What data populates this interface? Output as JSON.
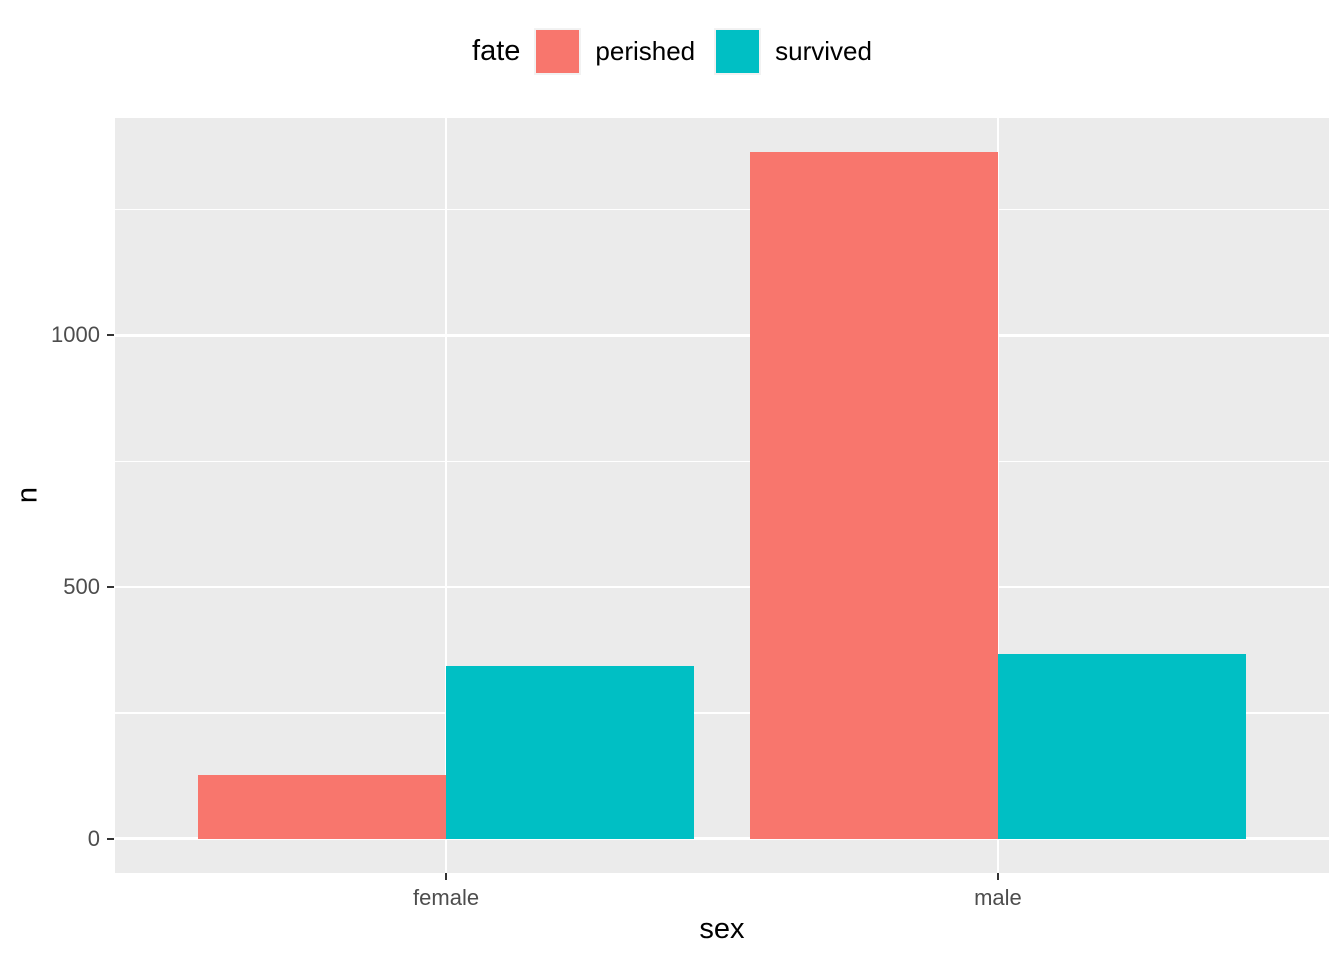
{
  "figure": {
    "legend": {
      "title": "fate",
      "items": [
        {
          "label": "perished",
          "color": "#F8766D"
        },
        {
          "label": "survived",
          "color": "#00BFC4"
        }
      ],
      "key_background": "#F2F2F2"
    },
    "x_axis": {
      "title": "sex",
      "tick_labels": [
        "female",
        "male"
      ]
    },
    "y_axis": {
      "title": "n",
      "tick_labels": [
        "0",
        "500",
        "1000"
      ]
    }
  },
  "chart_data": {
    "type": "bar",
    "mode": "dodged",
    "title": "",
    "xlabel": "sex",
    "ylabel": "n",
    "categories": [
      "female",
      "male"
    ],
    "series": [
      {
        "name": "perished",
        "color": "#F8766D",
        "values": [
          126,
          1364
        ]
      },
      {
        "name": "survived",
        "color": "#00BFC4",
        "values": [
          344,
          367
        ]
      }
    ],
    "y_breaks": [
      0,
      500,
      1000
    ],
    "y_minor_breaks": [
      250,
      750,
      1250
    ],
    "y_domain": [
      -68.2,
      1432.2
    ],
    "ylim": [
      0,
      1364
    ],
    "bar_relative_width": 0.9,
    "legend_position": "top",
    "grid": true,
    "panel_background": "#EBEBEB",
    "grid_color": "#FFFFFF",
    "axis_text_color": "#4D4D4D",
    "tick_mark_color": "#333333"
  }
}
